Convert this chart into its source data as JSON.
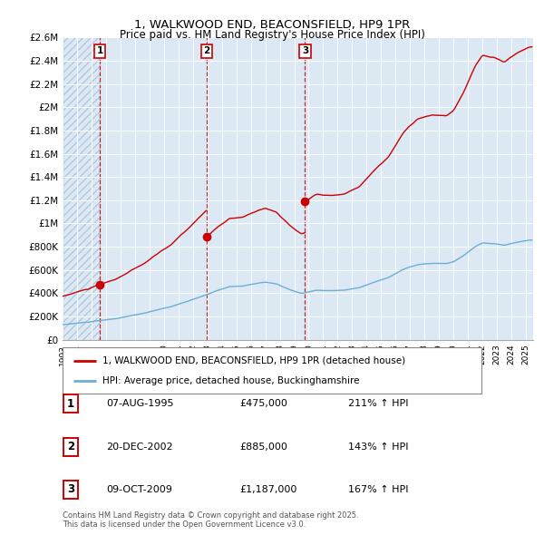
{
  "title": "1, WALKWOOD END, BEACONSFIELD, HP9 1PR",
  "subtitle": "Price paid vs. HM Land Registry's House Price Index (HPI)",
  "ylim": [
    0,
    2600000
  ],
  "yticks": [
    0,
    200000,
    400000,
    600000,
    800000,
    1000000,
    1200000,
    1400000,
    1600000,
    1800000,
    2000000,
    2200000,
    2400000,
    2600000
  ],
  "ytick_labels": [
    "£0",
    "£200K",
    "£400K",
    "£600K",
    "£800K",
    "£1M",
    "£1.2M",
    "£1.4M",
    "£1.6M",
    "£1.8M",
    "£2M",
    "£2.2M",
    "£2.4M",
    "£2.6M"
  ],
  "hpi_color": "#6baed6",
  "price_color": "#cc0000",
  "sale_dates": [
    1995.583,
    2002.958,
    2009.75
  ],
  "sale_prices": [
    475000,
    885000,
    1187000
  ],
  "sale_labels": [
    "1",
    "2",
    "3"
  ],
  "legend_line1": "1, WALKWOOD END, BEACONSFIELD, HP9 1PR (detached house)",
  "legend_line2": "HPI: Average price, detached house, Buckinghamshire",
  "table_entries": [
    {
      "label": "1",
      "date": "07-AUG-1995",
      "price": "£475,000",
      "hpi": "211% ↑ HPI"
    },
    {
      "label": "2",
      "date": "20-DEC-2002",
      "price": "£885,000",
      "hpi": "143% ↑ HPI"
    },
    {
      "label": "3",
      "date": "09-OCT-2009",
      "price": "£1,187,000",
      "hpi": "167% ↑ HPI"
    }
  ],
  "footer": "Contains HM Land Registry data © Crown copyright and database right 2025.\nThis data is licensed under the Open Government Licence v3.0.",
  "bg_color": "#ffffff",
  "plot_bg_color": "#dce9f5",
  "grid_color": "#ffffff",
  "hatch_color": "#b0c8e0",
  "xlim": [
    1993.0,
    2025.5
  ]
}
